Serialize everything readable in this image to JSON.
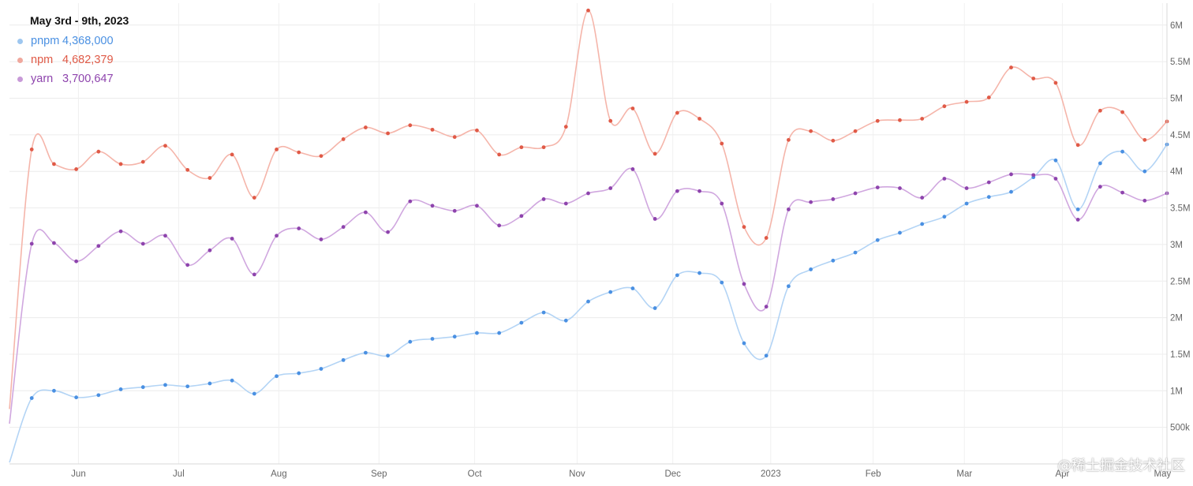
{
  "chart_data": {
    "type": "line",
    "title": "May 3rd - 9th, 2023",
    "x_tick_labels": [
      "Jun",
      "Jul",
      "Aug",
      "Sep",
      "Oct",
      "Nov",
      "Dec",
      "2023",
      "Feb",
      "Mar",
      "Apr",
      "May"
    ],
    "y_tick_labels": [
      "500k",
      "1M",
      "1.5M",
      "2M",
      "2.5M",
      "3M",
      "3.5M",
      "4M",
      "4.5M",
      "5M",
      "5.5M",
      "6M"
    ],
    "y_ticks": [
      500000,
      1000000,
      1500000,
      2000000,
      2500000,
      3000000,
      3500000,
      4000000,
      4500000,
      5000000,
      5500000,
      6000000
    ],
    "ylim": [
      0,
      6300000
    ],
    "x_range_weeks": [
      0,
      52
    ],
    "x_tick_positions_weeks": [
      3.1,
      7.6,
      12.1,
      16.6,
      20.9,
      25.5,
      29.8,
      34.2,
      38.8,
      42.9,
      47.3,
      51.8
    ],
    "grid": true,
    "legend_position": "top-left",
    "series": [
      {
        "name": "pnpm",
        "legend_value": "4,368,000",
        "color": "#4a90e2",
        "line_color": "#b3d4f5",
        "values": [
          20000,
          900000,
          1000000,
          910000,
          940000,
          1020000,
          1050000,
          1080000,
          1060000,
          1100000,
          1140000,
          960000,
          1200000,
          1240000,
          1300000,
          1420000,
          1520000,
          1480000,
          1670000,
          1710000,
          1740000,
          1790000,
          1790000,
          1930000,
          2070000,
          1960000,
          2220000,
          2350000,
          2400000,
          2130000,
          2580000,
          2610000,
          2480000,
          1650000,
          1480000,
          2430000,
          2660000,
          2780000,
          2890000,
          3060000,
          3160000,
          3280000,
          3380000,
          3560000,
          3650000,
          3720000,
          3920000,
          4150000,
          3480000,
          4110000,
          4270000,
          4000000,
          4368000
        ]
      },
      {
        "name": "npm",
        "legend_value": "4,682,379",
        "color": "#e05a47",
        "line_color": "#f5b5aa",
        "values": [
          750000,
          4300000,
          4100000,
          4030000,
          4270000,
          4100000,
          4130000,
          4350000,
          4020000,
          3910000,
          4230000,
          3640000,
          4300000,
          4260000,
          4210000,
          4440000,
          4600000,
          4520000,
          4630000,
          4570000,
          4470000,
          4560000,
          4230000,
          4330000,
          4330000,
          4610000,
          6200000,
          4690000,
          4860000,
          4240000,
          4800000,
          4720000,
          4380000,
          3240000,
          3090000,
          4430000,
          4550000,
          4420000,
          4550000,
          4690000,
          4700000,
          4720000,
          4890000,
          4950000,
          5010000,
          5420000,
          5270000,
          5210000,
          4360000,
          4830000,
          4810000,
          4430000,
          4682379
        ]
      },
      {
        "name": "yarn",
        "legend_value": "3,700,647",
        "color": "#8e44ad",
        "line_color": "#d0a7df",
        "values": [
          550000,
          3010000,
          3020000,
          2770000,
          2980000,
          3180000,
          3010000,
          3120000,
          2720000,
          2920000,
          3080000,
          2590000,
          3120000,
          3220000,
          3070000,
          3240000,
          3440000,
          3170000,
          3590000,
          3530000,
          3460000,
          3530000,
          3260000,
          3390000,
          3620000,
          3560000,
          3700000,
          3770000,
          4030000,
          3350000,
          3730000,
          3730000,
          3560000,
          2460000,
          2150000,
          3480000,
          3580000,
          3620000,
          3700000,
          3780000,
          3770000,
          3640000,
          3900000,
          3770000,
          3850000,
          3960000,
          3950000,
          3900000,
          3340000,
          3790000,
          3710000,
          3600000,
          3700647
        ]
      }
    ]
  },
  "watermark": "@稀土掘金技术社区"
}
